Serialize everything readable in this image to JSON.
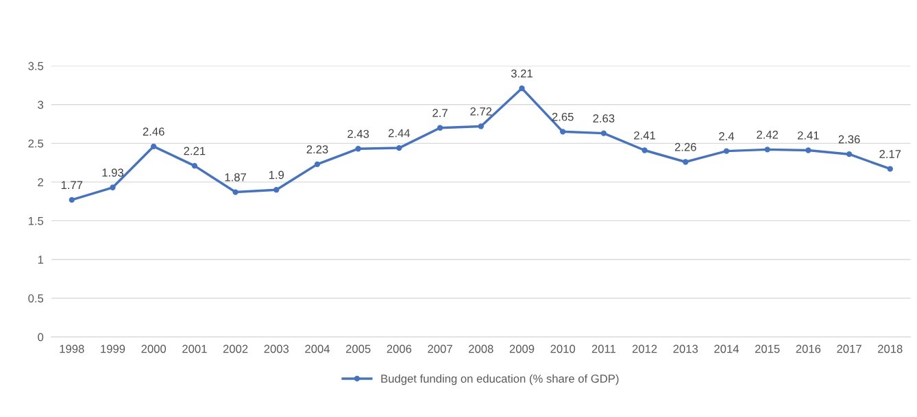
{
  "chart_data": {
    "type": "line",
    "categories": [
      "1998",
      "1999",
      "2000",
      "2001",
      "2002",
      "2003",
      "2004",
      "2005",
      "2006",
      "2007",
      "2008",
      "2009",
      "2010",
      "2011",
      "2012",
      "2013",
      "2014",
      "2015",
      "2016",
      "2017",
      "2018"
    ],
    "series": [
      {
        "name": "Budget funding on education (% share of GDP)",
        "color": "#4472c4",
        "values": [
          1.77,
          1.93,
          2.46,
          2.21,
          1.87,
          1.9,
          2.23,
          2.43,
          2.44,
          2.7,
          2.72,
          3.21,
          2.65,
          2.63,
          2.41,
          2.26,
          2.4,
          2.42,
          2.41,
          2.36,
          2.17
        ]
      }
    ],
    "ylim": [
      0,
      3.5
    ],
    "yticks": [
      0,
      0.5,
      1,
      1.5,
      2,
      2.5,
      3,
      3.5
    ],
    "grid": "y",
    "legend": "bottom",
    "marker": "circle",
    "line_style": "solid",
    "data_labels": true
  }
}
